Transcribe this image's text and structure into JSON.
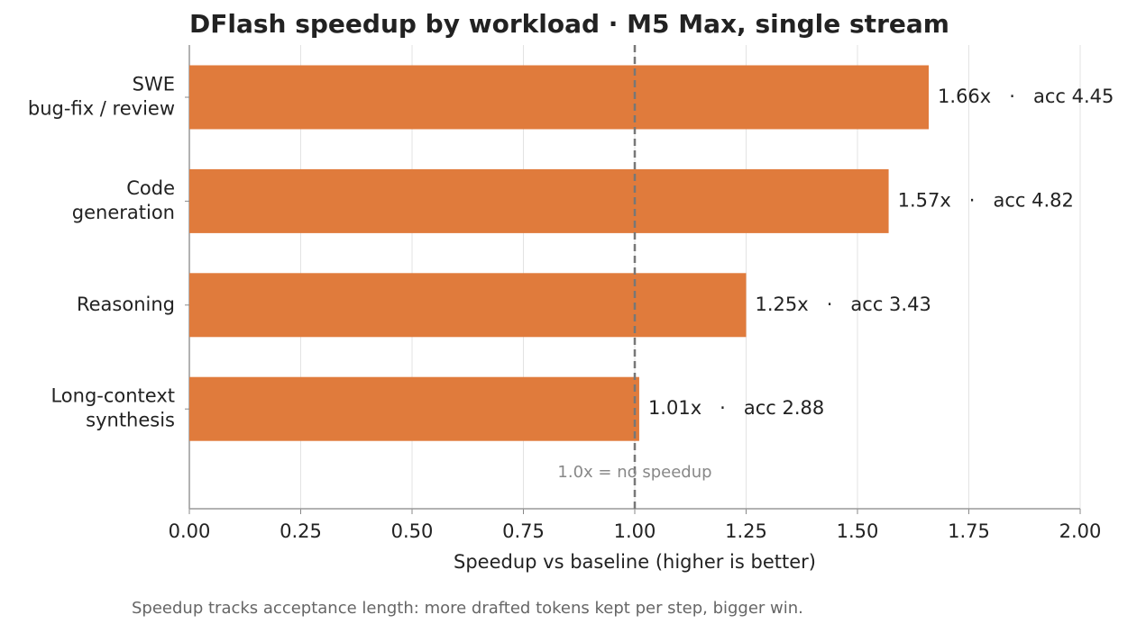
{
  "chart_data": {
    "type": "hbar",
    "title": "DFlash speedup by workload  ·  M5 Max, single stream",
    "categories": [
      [
        "SWE",
        "bug-fix / review"
      ],
      [
        "Code",
        "generation"
      ],
      [
        "Reasoning"
      ],
      [
        "Long-context",
        "synthesis"
      ]
    ],
    "values": [
      1.66,
      1.57,
      1.25,
      1.01
    ],
    "value_labels": [
      "1.66x   ·   acc 4.45",
      "1.57x   ·   acc 4.82",
      "1.25x   ·   acc 3.43",
      "1.01x   ·   acc 2.88"
    ],
    "color": "#e07b3c",
    "xlim": [
      0,
      2
    ],
    "xticks": [
      {
        "value": 0,
        "label": "0.00"
      },
      {
        "value": 0.25,
        "label": "0.25"
      },
      {
        "value": 0.5,
        "label": "0.50"
      },
      {
        "value": 0.75,
        "label": "0.75"
      },
      {
        "value": 1,
        "label": "1.00"
      },
      {
        "value": 1.25,
        "label": "1.25"
      },
      {
        "value": 1.5,
        "label": "1.50"
      },
      {
        "value": 1.75,
        "label": "1.75"
      },
      {
        "value": 2,
        "label": "2.00"
      }
    ],
    "xlabel": "Speedup vs baseline (higher is better)",
    "reference_line": {
      "value": 1,
      "label": "1.0x = no speedup"
    },
    "footnote": "Speedup tracks acceptance length: more drafted tokens kept per step, bigger win.",
    "grid": true
  }
}
